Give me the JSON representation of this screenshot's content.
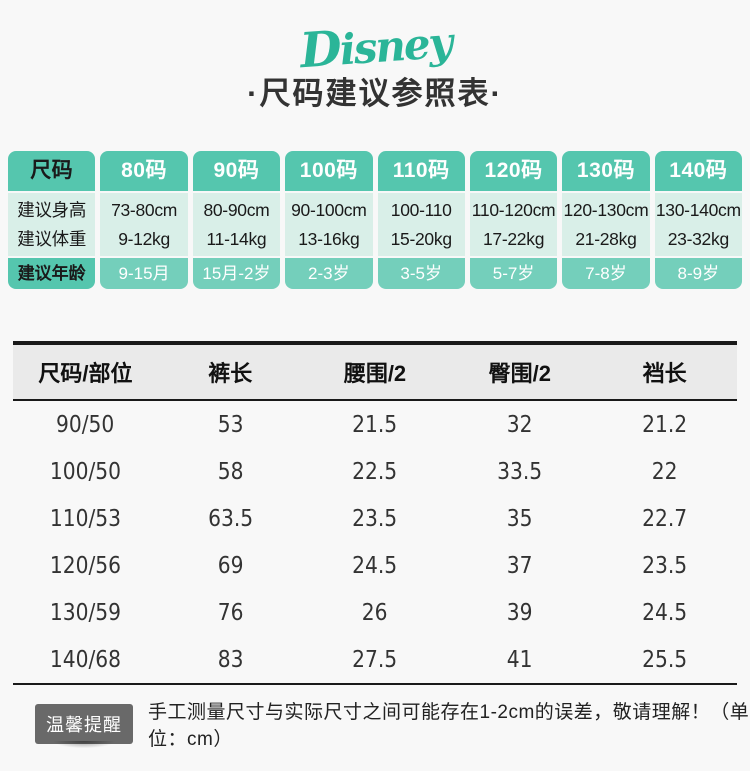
{
  "brand": {
    "logo_text": "Disney",
    "logo_color": "#2bb598"
  },
  "title": "·尺码建议参照表·",
  "size_table": {
    "header_label": "尺码",
    "row_labels": {
      "height": "建议身高",
      "weight": "建议体重",
      "age": "建议年龄"
    },
    "columns": [
      {
        "size": "80码",
        "height": "73-80cm",
        "weight": "9-12kg",
        "age": "9-15月"
      },
      {
        "size": "90码",
        "height": "80-90cm",
        "weight": "11-14kg",
        "age": "15月-2岁"
      },
      {
        "size": "100码",
        "height": "90-100cm",
        "weight": "13-16kg",
        "age": "2-3岁"
      },
      {
        "size": "110码",
        "height": "100-110",
        "weight": "15-20kg",
        "age": "3-5岁"
      },
      {
        "size": "120码",
        "height": "110-120cm",
        "weight": "17-22kg",
        "age": "5-7岁"
      },
      {
        "size": "130码",
        "height": "120-130cm",
        "weight": "21-28kg",
        "age": "7-8岁"
      },
      {
        "size": "140码",
        "height": "130-140cm",
        "weight": "23-32kg",
        "age": "8-9岁"
      }
    ],
    "colors": {
      "header_teal": "#55c6ae",
      "body_teal": "#d9efe8",
      "age_teal": "#74cfbb"
    }
  },
  "measure_table": {
    "headers": [
      "尺码/部位",
      "裤长",
      "腰围/2",
      "臀围/2",
      "裆长"
    ],
    "rows": [
      [
        "90/50",
        "53",
        "21.5",
        "32",
        "21.2"
      ],
      [
        "100/50",
        "58",
        "22.5",
        "33.5",
        "22"
      ],
      [
        "110/53",
        "63.5",
        "23.5",
        "35",
        "22.7"
      ],
      [
        "120/56",
        "69",
        "24.5",
        "37",
        "23.5"
      ],
      [
        "130/59",
        "76",
        "26",
        "39",
        "24.5"
      ],
      [
        "140/68",
        "83",
        "27.5",
        "41",
        "25.5"
      ]
    ]
  },
  "reminder": {
    "badge": "温馨提醒",
    "text": "手工测量尺寸与实际尺寸之间可能存在1-2cm的误差，敬请理解！（单位：cm）"
  }
}
